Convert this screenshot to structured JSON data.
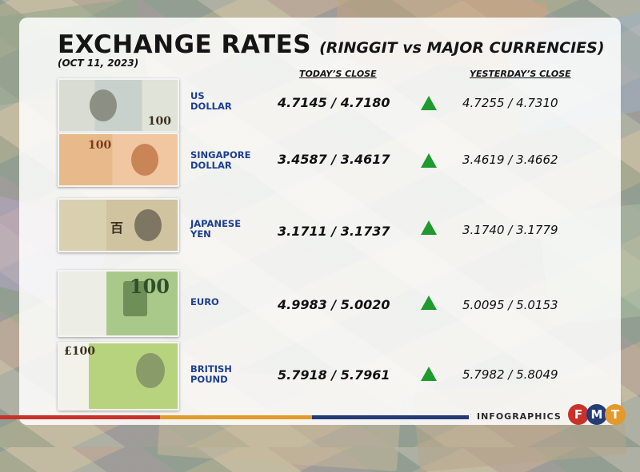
{
  "header": {
    "title": "EXCHANGE RATES",
    "subtitle": "(RINGGIT vs MAJOR CURRENCIES)",
    "date": "(OCT 11, 2023)"
  },
  "columns": {
    "today": "TODAY’S CLOSE",
    "yesterday": "YESTERDAY’S CLOSE"
  },
  "currencies": [
    {
      "name_line1": "US",
      "name_line2": "DOLLAR",
      "today": "4.7145 / 4.7180",
      "yesterday": "4.7255 / 4.7310",
      "trend": "up-arrow-icon",
      "note_denomination": "100"
    },
    {
      "name_line1": "SINGAPORE",
      "name_line2": "DOLLAR",
      "today": "3.4587 / 3.4617",
      "yesterday": "3.4619 / 3.4662",
      "trend": "up-arrow-icon",
      "note_denomination": "100"
    },
    {
      "name_line1": "JAPANESE",
      "name_line2": "YEN",
      "today": "3.1711 / 3.1737",
      "yesterday": "3.1740 / 3.1779",
      "trend": "up-arrow-icon",
      "note_denomination": "百"
    },
    {
      "name_line1": "EURO",
      "name_line2": "",
      "today": "4.9983 / 5.0020",
      "yesterday": "5.0095 / 5.0153",
      "trend": "up-arrow-icon",
      "note_denomination": "100"
    },
    {
      "name_line1": "BRITISH",
      "name_line2": "POUND",
      "today": "5.7918 / 5.7961",
      "yesterday": "5.7982 / 5.8049",
      "trend": "up-arrow-icon",
      "note_denomination": "£100"
    }
  ],
  "footer": {
    "label": "INFOGRAPHICS",
    "logo_letters": [
      "F",
      "M",
      "T"
    ]
  },
  "colors": {
    "accent_blue": "#1d3f8f",
    "arrow_green": "#1f9a2e",
    "logo_red": "#c8322a",
    "logo_navy": "#243b78",
    "logo_orange": "#e49a2a"
  }
}
